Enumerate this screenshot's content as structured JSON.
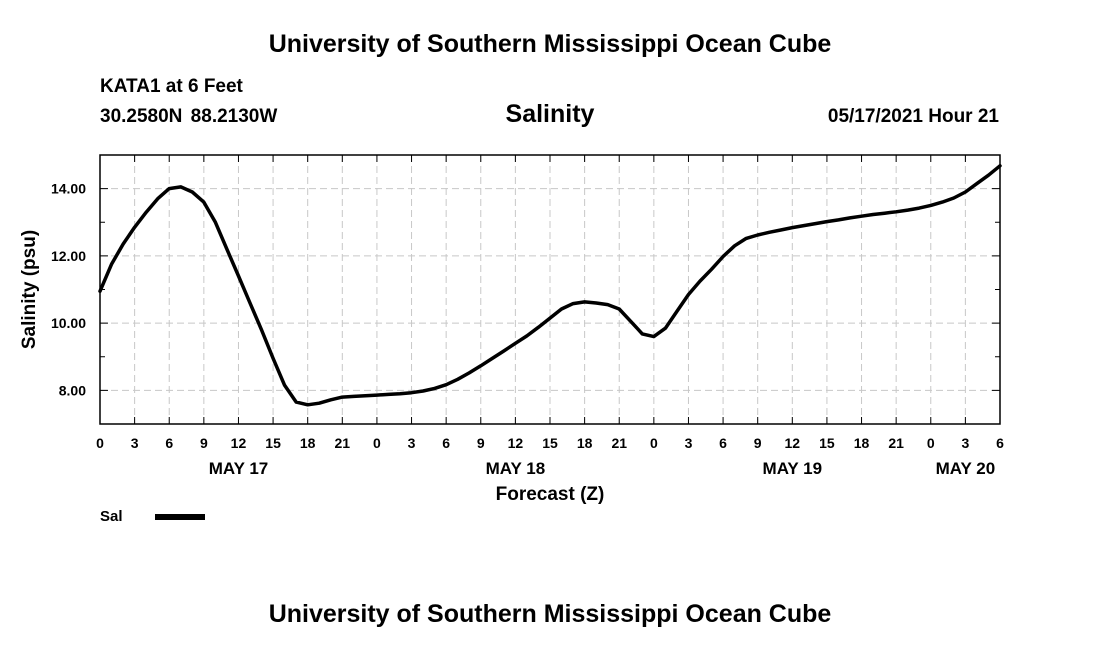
{
  "header": {
    "title": "University of Southern Mississippi Ocean Cube",
    "station": "KATA1 at 6 Feet",
    "coordinates": "30.2580N  88.2130W",
    "datetime": "05/17/2021 Hour 21"
  },
  "footer": {
    "title": "University of Southern Mississippi Ocean Cube"
  },
  "legend": {
    "label": "Sal",
    "color": "#000000"
  },
  "chart_data": {
    "type": "line",
    "title": "Salinity",
    "xlabel": "Forecast (Z)",
    "ylabel": "Salinity (psu)",
    "xlim": [
      0,
      78
    ],
    "ylim": [
      7,
      15
    ],
    "grid": true,
    "legend_position": "bottom-left",
    "x_tick_labels": [
      "0",
      "3",
      "6",
      "9",
      "12",
      "15",
      "18",
      "21",
      "0",
      "3",
      "6",
      "9",
      "12",
      "15",
      "18",
      "21",
      "0",
      "3",
      "6",
      "9",
      "12",
      "15",
      "18",
      "21",
      "0",
      "3",
      "6"
    ],
    "y_tick_values": [
      8,
      10,
      12,
      14
    ],
    "y_tick_labels": [
      "8.00",
      "10.00",
      "12.00",
      "14.00"
    ],
    "day_labels": [
      {
        "x": 12,
        "label": "MAY 17"
      },
      {
        "x": 36,
        "label": "MAY 18"
      },
      {
        "x": 60,
        "label": "MAY 19"
      },
      {
        "x": 75,
        "label": "MAY 20"
      }
    ],
    "series": [
      {
        "name": "Sal",
        "color": "#000000",
        "x": [
          0,
          1,
          2,
          3,
          4,
          5,
          6,
          7,
          8,
          9,
          10,
          11,
          12,
          13,
          14,
          15,
          16,
          17,
          18,
          19,
          20,
          21,
          22,
          23,
          24,
          25,
          26,
          27,
          28,
          29,
          30,
          31,
          32,
          33,
          34,
          35,
          36,
          37,
          38,
          39,
          40,
          41,
          42,
          43,
          44,
          45,
          46,
          47,
          48,
          49,
          50,
          51,
          52,
          53,
          54,
          55,
          56,
          57,
          58,
          59,
          60,
          61,
          62,
          63,
          64,
          65,
          66,
          67,
          68,
          69,
          70,
          71,
          72,
          73,
          74,
          75,
          76,
          77,
          78
        ],
        "values": [
          10.95,
          11.75,
          12.35,
          12.85,
          13.3,
          13.7,
          14.0,
          14.05,
          13.9,
          13.6,
          13.0,
          12.2,
          11.4,
          10.6,
          9.8,
          8.95,
          8.15,
          7.65,
          7.57,
          7.62,
          7.72,
          7.8,
          7.82,
          7.84,
          7.86,
          7.88,
          7.9,
          7.93,
          7.98,
          8.06,
          8.17,
          8.33,
          8.52,
          8.73,
          8.95,
          9.17,
          9.4,
          9.62,
          9.88,
          10.15,
          10.42,
          10.58,
          10.63,
          10.6,
          10.55,
          10.42,
          10.05,
          9.68,
          9.6,
          9.85,
          10.35,
          10.85,
          11.25,
          11.6,
          11.98,
          12.3,
          12.52,
          12.62,
          12.7,
          12.77,
          12.84,
          12.9,
          12.96,
          13.02,
          13.07,
          13.13,
          13.18,
          13.23,
          13.27,
          13.31,
          13.36,
          13.42,
          13.5,
          13.6,
          13.72,
          13.9,
          14.15,
          14.4,
          14.68
        ]
      }
    ]
  }
}
